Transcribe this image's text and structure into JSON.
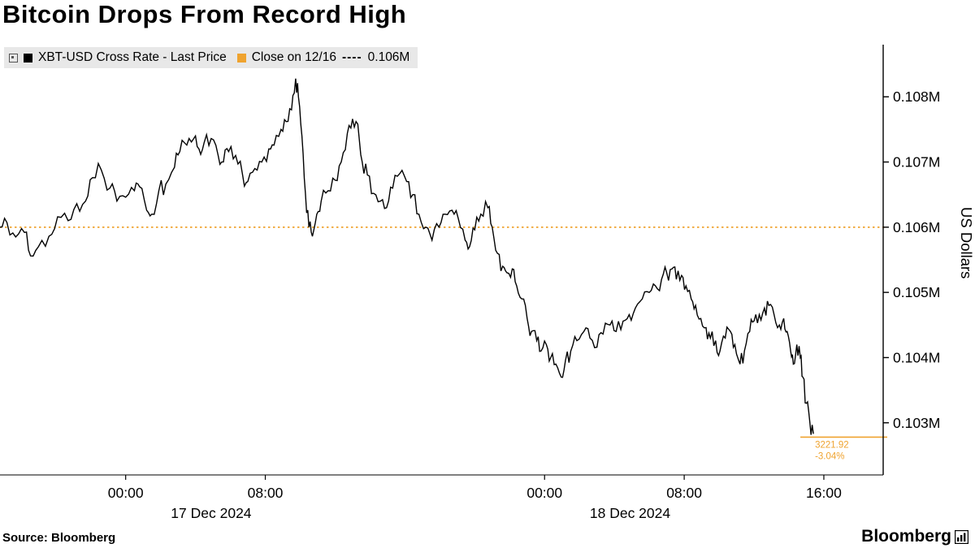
{
  "title": "Bitcoin Drops From Record High",
  "legend": {
    "series_label": "XBT-USD Cross Rate - Last Price",
    "close_label": "Close on 12/16",
    "close_dashes": "----",
    "close_value": "0.106M"
  },
  "footer": {
    "source": "Source:  Bloomberg",
    "brand": "Bloomberg"
  },
  "colors": {
    "accent_orange": "#EFA32F",
    "series_black": "#000000",
    "legend_bg": "#E8E8E8"
  },
  "chart_data": {
    "type": "line",
    "title": "Bitcoin Drops From Record High",
    "xlabel": "",
    "ylabel": "US Dollars",
    "unit": "M USD",
    "legend_position": "top-left",
    "grid": false,
    "reference_line": {
      "label": "Close on 12/16",
      "value": 0.106,
      "color": "#EFA32F",
      "style": "dashed"
    },
    "last_price": {
      "value": 0.10278,
      "change": "3221.92",
      "change_pct": "-3.04%",
      "color": "#EFA32F"
    },
    "x_axis": {
      "min": -7.2,
      "max": 43.4,
      "ticks": [
        {
          "t": 0,
          "label": "00:00"
        },
        {
          "t": 8,
          "label": "08:00"
        },
        {
          "t": 24,
          "label": "00:00"
        },
        {
          "t": 32,
          "label": "08:00"
        },
        {
          "t": 40,
          "label": "16:00"
        }
      ],
      "date_labels": [
        {
          "t": 4.9,
          "label": "17 Dec 2024"
        },
        {
          "t": 28.9,
          "label": "18 Dec 2024"
        }
      ]
    },
    "y_axis": {
      "min": 0.1022,
      "max": 0.1088,
      "ticks": [
        0.103,
        0.104,
        0.105,
        0.106,
        0.107,
        0.108
      ],
      "tick_labels": [
        "0.103M",
        "0.104M",
        "0.105M",
        "0.106M",
        "0.107M",
        "0.108M"
      ]
    },
    "series": [
      {
        "name": "XBT-USD Cross Rate - Last Price",
        "color": "#000000",
        "points": [
          [
            -7.22,
            0.106
          ],
          [
            -6.8,
            0.10607
          ],
          [
            -6.3,
            0.10585
          ],
          [
            -5.8,
            0.10592
          ],
          [
            -5.45,
            0.10556
          ],
          [
            -5.0,
            0.1057
          ],
          [
            -4.4,
            0.10586
          ],
          [
            -3.9,
            0.10616
          ],
          [
            -3.3,
            0.1061
          ],
          [
            -2.8,
            0.10636
          ],
          [
            -2.3,
            0.1064
          ],
          [
            -1.9,
            0.10676
          ],
          [
            -1.4,
            0.10688
          ],
          [
            -0.9,
            0.1066
          ],
          [
            -0.5,
            0.1064
          ],
          [
            0.0,
            0.10646
          ],
          [
            0.5,
            0.10656
          ],
          [
            0.8,
            0.10662
          ],
          [
            1.2,
            0.10626
          ],
          [
            1.5,
            0.1062
          ],
          [
            1.9,
            0.10656
          ],
          [
            2.3,
            0.10666
          ],
          [
            2.8,
            0.10692
          ],
          [
            3.1,
            0.10716
          ],
          [
            3.5,
            0.10726
          ],
          [
            3.9,
            0.10736
          ],
          [
            4.2,
            0.1072
          ],
          [
            4.5,
            0.1073
          ],
          [
            4.9,
            0.10736
          ],
          [
            5.3,
            0.1071
          ],
          [
            5.6,
            0.107
          ],
          [
            5.9,
            0.10716
          ],
          [
            6.3,
            0.1071
          ],
          [
            6.7,
            0.1068
          ],
          [
            7.0,
            0.1067
          ],
          [
            7.4,
            0.1069
          ],
          [
            7.8,
            0.107
          ],
          [
            8.2,
            0.1072
          ],
          [
            8.5,
            0.10726
          ],
          [
            8.9,
            0.1075
          ],
          [
            9.2,
            0.10762
          ],
          [
            9.5,
            0.1078
          ],
          [
            9.74,
            0.10828
          ],
          [
            9.9,
            0.108
          ],
          [
            10.1,
            0.1074
          ],
          [
            10.3,
            0.10652
          ],
          [
            10.5,
            0.106
          ],
          [
            10.7,
            0.10586
          ],
          [
            10.95,
            0.1062
          ],
          [
            11.2,
            0.1064
          ],
          [
            11.6,
            0.10656
          ],
          [
            12.0,
            0.10672
          ],
          [
            12.35,
            0.107
          ],
          [
            12.7,
            0.10744
          ],
          [
            13.0,
            0.10766
          ],
          [
            13.3,
            0.10758
          ],
          [
            13.55,
            0.107
          ],
          [
            13.85,
            0.1068
          ],
          [
            14.2,
            0.10652
          ],
          [
            14.6,
            0.1064
          ],
          [
            14.95,
            0.1063
          ],
          [
            15.3,
            0.1066
          ],
          [
            15.7,
            0.10682
          ],
          [
            16.1,
            0.1067
          ],
          [
            16.45,
            0.1065
          ],
          [
            16.8,
            0.1062
          ],
          [
            17.2,
            0.106
          ],
          [
            17.55,
            0.1058
          ],
          [
            17.95,
            0.106
          ],
          [
            18.3,
            0.1062
          ],
          [
            18.7,
            0.10626
          ],
          [
            19.05,
            0.10614
          ],
          [
            19.45,
            0.1058
          ],
          [
            19.7,
            0.1057
          ],
          [
            20.0,
            0.10596
          ],
          [
            20.35,
            0.1062
          ],
          [
            20.75,
            0.1063
          ],
          [
            21.0,
            0.106
          ],
          [
            21.3,
            0.1056
          ],
          [
            21.6,
            0.1054
          ],
          [
            21.85,
            0.1053
          ],
          [
            22.15,
            0.10536
          ],
          [
            22.4,
            0.1051
          ],
          [
            22.7,
            0.1049
          ],
          [
            23.0,
            0.1046
          ],
          [
            23.25,
            0.1044
          ],
          [
            23.55,
            0.10426
          ],
          [
            23.8,
            0.1041
          ],
          [
            24.1,
            0.1042
          ],
          [
            24.35,
            0.104
          ],
          [
            24.65,
            0.1039
          ],
          [
            24.95,
            0.1037
          ],
          [
            25.2,
            0.10396
          ],
          [
            25.5,
            0.1041
          ],
          [
            25.85,
            0.10426
          ],
          [
            26.25,
            0.1044
          ],
          [
            26.6,
            0.1043
          ],
          [
            27.0,
            0.10416
          ],
          [
            27.35,
            0.10436
          ],
          [
            27.75,
            0.1045
          ],
          [
            28.1,
            0.1044
          ],
          [
            28.5,
            0.10456
          ],
          [
            28.85,
            0.10466
          ],
          [
            29.2,
            0.10476
          ],
          [
            29.6,
            0.1049
          ],
          [
            30.0,
            0.105
          ],
          [
            30.35,
            0.1051
          ],
          [
            30.7,
            0.1052
          ],
          [
            31.0,
            0.1053
          ],
          [
            31.3,
            0.10536
          ],
          [
            31.55,
            0.1052
          ],
          [
            31.85,
            0.10526
          ],
          [
            32.1,
            0.1051
          ],
          [
            32.4,
            0.1049
          ],
          [
            32.65,
            0.1048
          ],
          [
            32.95,
            0.1046
          ],
          [
            33.25,
            0.10446
          ],
          [
            33.5,
            0.1043
          ],
          [
            33.8,
            0.10426
          ],
          [
            34.05,
            0.1041
          ],
          [
            34.35,
            0.1043
          ],
          [
            34.65,
            0.1044
          ],
          [
            34.9,
            0.1042
          ],
          [
            35.2,
            0.1039
          ],
          [
            35.45,
            0.1041
          ],
          [
            35.75,
            0.1044
          ],
          [
            36.0,
            0.10456
          ],
          [
            36.3,
            0.10466
          ],
          [
            36.6,
            0.10476
          ],
          [
            36.85,
            0.1048
          ],
          [
            37.15,
            0.10466
          ],
          [
            37.45,
            0.1045
          ],
          [
            37.7,
            0.1046
          ],
          [
            37.9,
            0.1044
          ],
          [
            38.1,
            0.1041
          ],
          [
            38.25,
            0.1039
          ],
          [
            38.45,
            0.1042
          ],
          [
            38.65,
            0.104
          ],
          [
            38.8,
            0.1037
          ],
          [
            39.0,
            0.1033
          ],
          [
            39.2,
            0.103
          ],
          [
            39.4,
            0.10283
          ]
        ]
      }
    ]
  }
}
